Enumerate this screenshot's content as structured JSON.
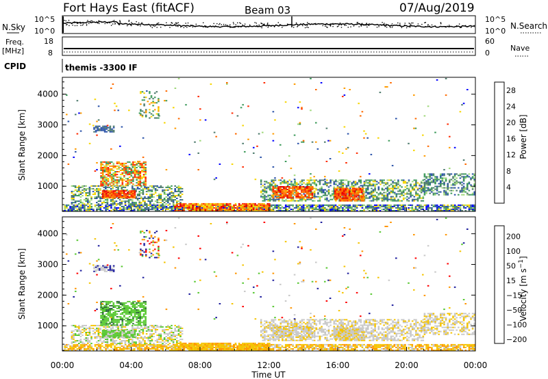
{
  "header": {
    "station": "Fort Hays East (fitACF)",
    "beam": "Beam 03",
    "date": "07/Aug/2019"
  },
  "noise_panel": {
    "left_label": "N.Sky",
    "right_label": "N.Search",
    "left_ticks": [
      "10^5",
      "10^0"
    ],
    "right_ticks": [
      "10^5",
      "10^0"
    ]
  },
  "freq_panel": {
    "label_line1": "Freq.",
    "label_line2": "[MHz]",
    "left_ticks": [
      "18",
      "8"
    ],
    "right_ticks": [
      "60",
      "0"
    ],
    "right_label": "Nave"
  },
  "cpid_panel": {
    "label": "CPID",
    "text": "themis -3300 IF"
  },
  "colors": {
    "power": [
      "#0000ff",
      "#2a52a8",
      "#4d7a6b",
      "#3c9a5a",
      "#9fd87a",
      "#f7d600",
      "#ff9b00",
      "#ff6a00",
      "#ff2a00",
      "#e80000"
    ],
    "velocity": {
      "pos_high": "#1c1c9c",
      "pos_mid": "#2f6b3a",
      "pos_low": "#58c832",
      "ground": "#c8c8c8",
      "neg_low": "#f5c400",
      "neg_mid": "#ff9500",
      "neg_high": "#ff5200",
      "neg_max": "#ff0000"
    }
  },
  "chart_data": [
    {
      "type": "heatmap",
      "title": "",
      "xlabel": "",
      "ylabel": "Slant Range [km]",
      "x_ticks": [
        "00:00",
        "04:00",
        "08:00",
        "12:00",
        "16:00",
        "20:00",
        "00:00"
      ],
      "xlim_hours": [
        0,
        24
      ],
      "y_ticks": [
        1000,
        2000,
        3000,
        4000
      ],
      "ylim": [
        180,
        4550
      ],
      "colorbar_label": "Power [dB]",
      "colorbar_ticks": [
        4,
        8,
        12,
        16,
        20,
        24,
        28
      ],
      "colorbar_range": [
        0,
        30
      ]
    },
    {
      "type": "heatmap",
      "title": "",
      "xlabel": "Time UT",
      "ylabel": "Slant Range [km]",
      "x_ticks": [
        "00:00",
        "04:00",
        "08:00",
        "12:00",
        "16:00",
        "20:00",
        "00:00"
      ],
      "xlim_hours": [
        0,
        24
      ],
      "y_ticks": [
        1000,
        2000,
        3000,
        4000
      ],
      "ylim": [
        180,
        4550
      ],
      "colorbar_label": "Velocity [m s^-1]",
      "colorbar_ticks": [
        200,
        100,
        50,
        15,
        -15,
        -50,
        -100,
        -200
      ],
      "colorbar_range": [
        -250,
        250
      ]
    }
  ]
}
